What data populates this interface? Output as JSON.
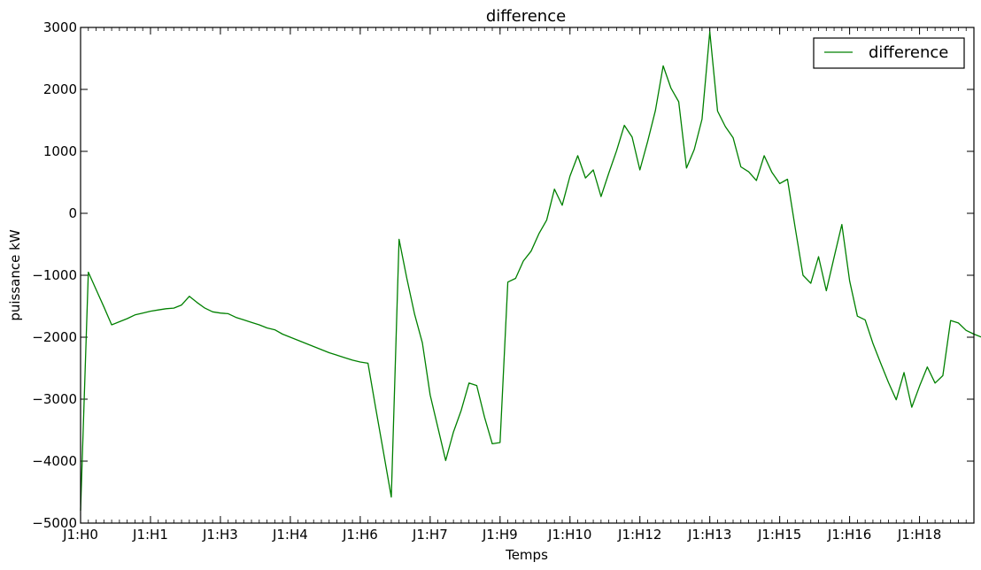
{
  "chart_data": {
    "type": "line",
    "title": "difference",
    "xlabel": "Temps",
    "ylabel": "puissance kW",
    "ylim": [
      -5000,
      3000
    ],
    "yticks": [
      -5000,
      -4000,
      -3000,
      -2000,
      -1000,
      0,
      1000,
      2000,
      3000
    ],
    "xticks": [
      "J1:H0",
      "J1:H1",
      "J1:H3",
      "J1:H4",
      "J1:H6",
      "J1:H7",
      "J1:H9",
      "J1:H10",
      "J1:H12",
      "J1:H13",
      "J1:H15",
      "J1:H16",
      "J1:H18"
    ],
    "xlim_index": [
      0,
      115
    ],
    "legend": {
      "position": "top-right",
      "entries": [
        "difference"
      ]
    },
    "grid": false,
    "series": [
      {
        "name": "difference",
        "color": "#008000",
        "values": [
          -4800,
          -950,
          -1230,
          -1510,
          -1800,
          -1750,
          -1700,
          -1640,
          -1610,
          -1580,
          -1560,
          -1540,
          -1530,
          -1480,
          -1340,
          -1440,
          -1530,
          -1590,
          -1610,
          -1620,
          -1680,
          -1720,
          -1760,
          -1800,
          -1850,
          -1880,
          -1950,
          -2000,
          -2050,
          -2100,
          -2150,
          -2200,
          -2250,
          -2290,
          -2330,
          -2370,
          -2400,
          -2420,
          -3150,
          -3860,
          -4580,
          -420,
          -1050,
          -1630,
          -2090,
          -2930,
          -3460,
          -3990,
          -3530,
          -3180,
          -2740,
          -2780,
          -3290,
          -3720,
          -3700,
          -1110,
          -1050,
          -770,
          -610,
          -330,
          -110,
          390,
          130,
          600,
          930,
          570,
          700,
          270,
          650,
          1010,
          1420,
          1230,
          700,
          1160,
          1660,
          2380,
          2020,
          1800,
          730,
          1030,
          1520,
          2930,
          1650,
          1400,
          1220,
          750,
          670,
          530,
          930,
          660,
          480,
          550,
          -240,
          -1000,
          -1130,
          -700,
          -1250,
          -710,
          -180,
          -1090,
          -1660,
          -1720,
          -2100,
          -2420,
          -2730,
          -3010,
          -2570,
          -3130,
          -2790,
          -2480,
          -2740,
          -2620,
          -1730,
          -1770,
          -1890,
          -1950,
          -2000
        ]
      }
    ]
  }
}
